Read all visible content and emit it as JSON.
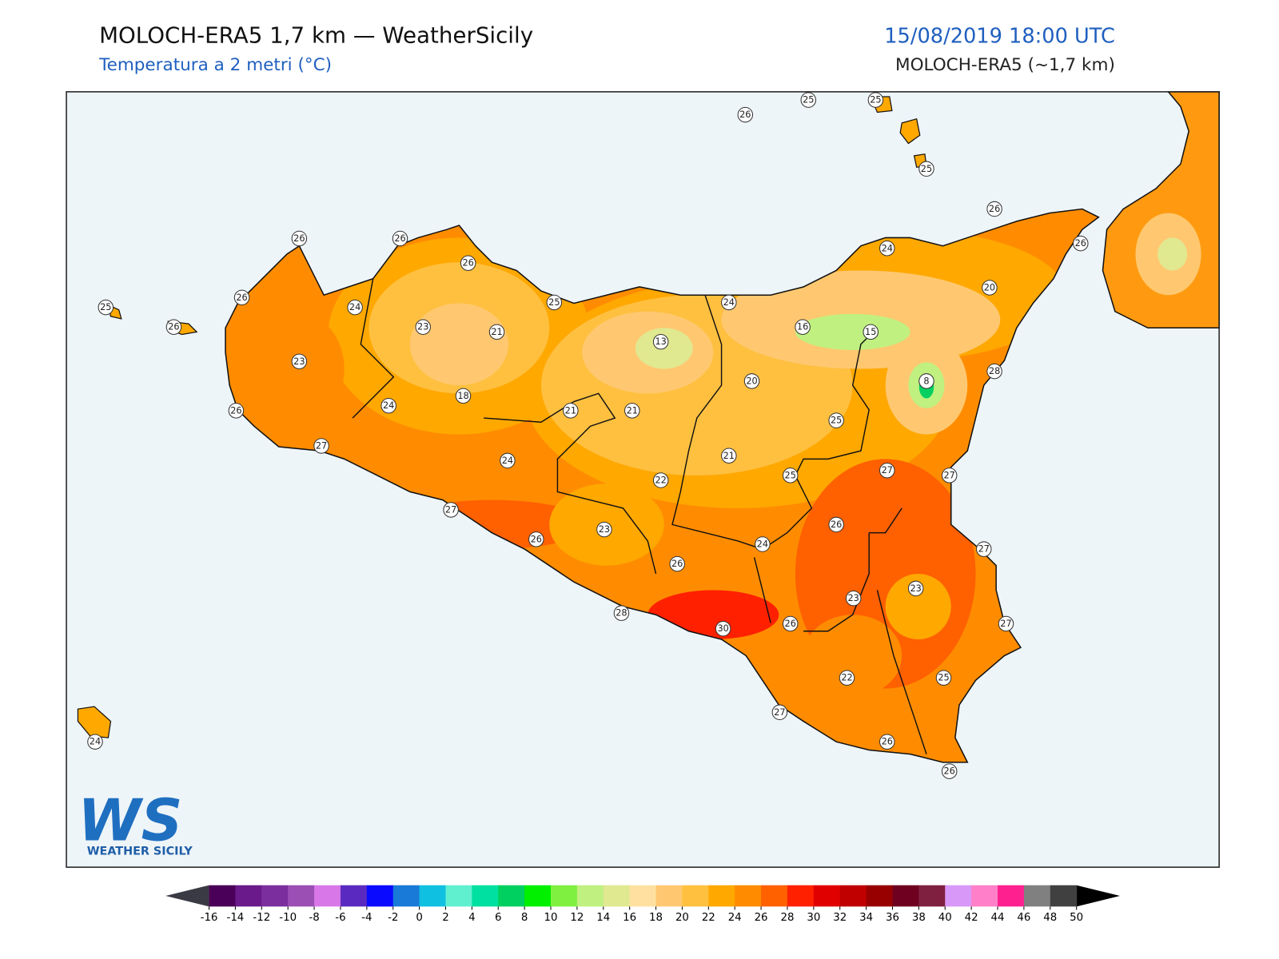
{
  "header": {
    "title": "MOLOCH-ERA5 1,7 km — WeatherSicily",
    "subtitle": "Temperatura a 2 metri (°C)",
    "datetime": "15/08/2019 18:00 UTC",
    "model": "MOLOCH-ERA5 (~1,7 km)"
  },
  "map": {
    "stations": [
      26,
      25,
      25,
      25,
      26,
      26,
      24,
      20,
      26,
      26,
      26,
      26,
      24,
      25,
      26,
      23,
      21,
      25,
      13,
      24,
      16,
      15,
      8,
      28,
      23,
      18,
      24,
      26,
      21,
      21,
      20,
      25,
      27,
      24,
      21,
      25,
      27,
      27,
      22,
      27,
      23,
      26,
      26,
      24,
      27,
      26,
      23,
      23,
      28,
      30,
      26,
      27,
      22,
      25,
      27,
      26,
      26,
      24
    ]
  },
  "colorbar": {
    "ticks": [
      -16,
      -14,
      -12,
      -10,
      -8,
      -6,
      -4,
      -2,
      0,
      2,
      4,
      6,
      8,
      10,
      12,
      14,
      16,
      18,
      20,
      22,
      24,
      26,
      28,
      30,
      32,
      34,
      36,
      38,
      40,
      42,
      44,
      46,
      48,
      50
    ],
    "colors": [
      "#4a0058",
      "#6a1a8a",
      "#7b2f9e",
      "#9b4fb5",
      "#d878e8",
      "#5a2ac0",
      "#0a0aff",
      "#1a7ad8",
      "#10c0e0",
      "#60f0d0",
      "#00e0a0",
      "#00d060",
      "#00f000",
      "#80f040",
      "#c0f080",
      "#e0e890",
      "#ffe0a0",
      "#ffc870",
      "#ffc040",
      "#ffa800",
      "#ff8c00",
      "#ff6000",
      "#ff2000",
      "#e00000",
      "#c00000",
      "#980000",
      "#700020",
      "#802040",
      "#d898f8",
      "#ff80c8",
      "#ff2090",
      "#808080",
      "#404040"
    ],
    "under": "#3a3a44",
    "over": "#000000"
  },
  "logo": {
    "mark": "WS",
    "name": "WEATHER SICILY"
  }
}
